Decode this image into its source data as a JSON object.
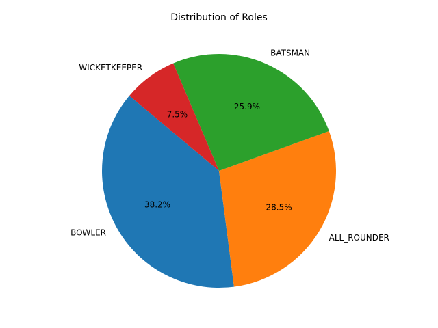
{
  "chart_data": {
    "type": "pie",
    "title": "Distribution of Roles",
    "start_angle_deg": 140,
    "direction": "counterclockwise",
    "slices": [
      {
        "label": "BOWLER",
        "value": 38.2,
        "pct_text": "38.2%",
        "color": "#1f77b4"
      },
      {
        "label": "ALL_ROUNDER",
        "value": 28.5,
        "pct_text": "28.5%",
        "color": "#ff7f0e"
      },
      {
        "label": "BATSMAN",
        "value": 25.9,
        "pct_text": "25.9%",
        "color": "#2ca02c"
      },
      {
        "label": "WICKETKEEPER",
        "value": 7.5,
        "pct_text": "7.5%",
        "color": "#d62728"
      }
    ]
  }
}
